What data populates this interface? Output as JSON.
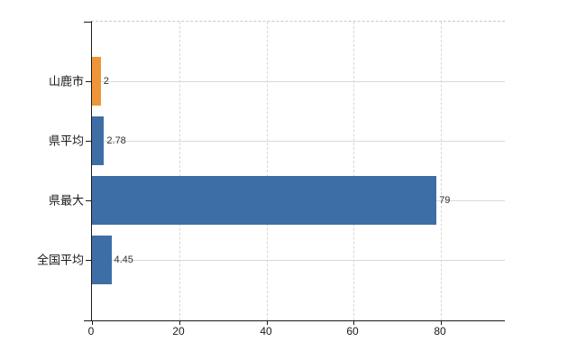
{
  "chart_data": {
    "type": "bar",
    "orientation": "horizontal",
    "title": "",
    "xlabel": "",
    "ylabel": "",
    "categories": [
      "山鹿市",
      "県平均",
      "県最大",
      "全国平均"
    ],
    "values": [
      2,
      2.78,
      79,
      4.45
    ],
    "value_labels": [
      "2",
      "2.78",
      "79",
      "4.45"
    ],
    "bar_colors": [
      "#EF9539",
      "#3D6EA6",
      "#3D6EA6",
      "#3D6EA6"
    ],
    "xticks": [
      0,
      20,
      40,
      60,
      80
    ],
    "xtick_labels": [
      "0",
      "20",
      "40",
      "60",
      "80"
    ],
    "xlim": [
      0,
      94.7
    ],
    "grid": true,
    "legend": "none",
    "colors": {
      "highlight_bar": "#EF9539",
      "default_bar": "#3D6EA6",
      "axis": "#1a1a1a",
      "vertical_grid": "#d6d6d6",
      "horizontal_grid": "#d2ddd2",
      "top_border": "#c8c8c8",
      "value_text": "#333333",
      "label_text": "#1a1a1a",
      "background": "#ffffff"
    }
  }
}
